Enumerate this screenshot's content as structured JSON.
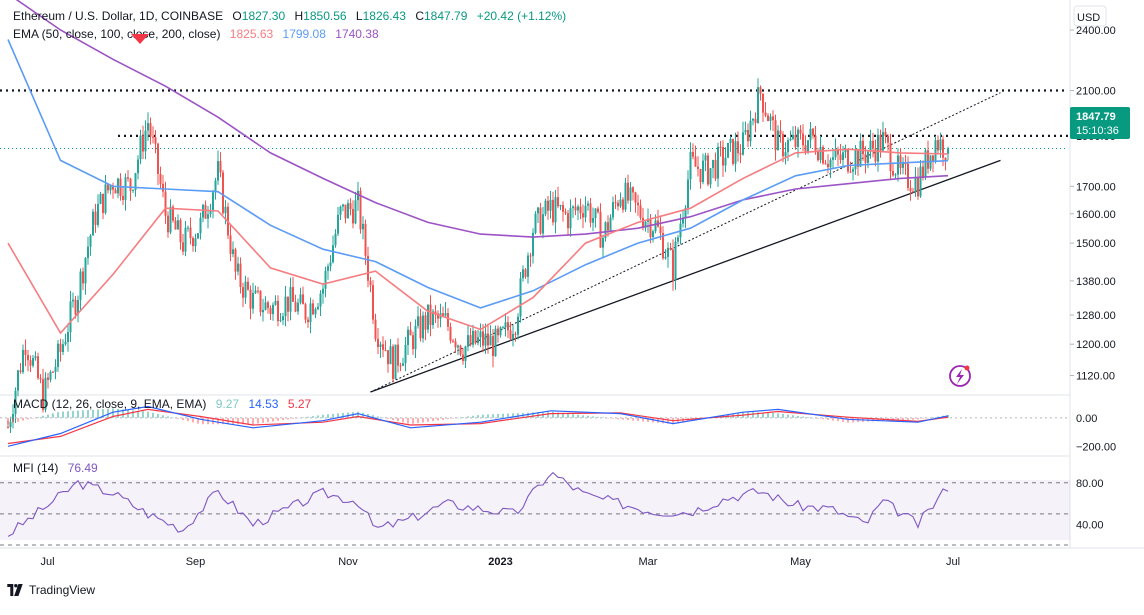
{
  "header": {
    "symbol_line_prefix": "Ethereum / U.S. Dollar, 1D, COINBASE",
    "o_label": "O",
    "o_value": "1827.30",
    "h_label": "H",
    "h_value": "1850.56",
    "l_label": "L",
    "l_value": "1826.43",
    "c_label": "C",
    "c_value": "1847.79",
    "change": "+20.42 (+1.12%)",
    "ema_label": "EMA (50, close, 100, close, 200, close)",
    "ema50_value": "1825.63",
    "ema100_value": "1799.08",
    "ema200_value": "1740.38",
    "currency": "USD"
  },
  "price_tags": {
    "last_price": "1847.79",
    "countdown": "15:10:36"
  },
  "macd_header": {
    "label": "MACD (12, 26, close, 9, EMA, EMA)",
    "histogram_value": "9.27",
    "macd_value": "14.53",
    "signal_value": "5.27"
  },
  "mfi_header": {
    "label": "MFI (14)",
    "value": "76.49"
  },
  "footer": {
    "brand": "TradingView"
  },
  "colors": {
    "up": "#26a69a",
    "down": "#ef5350",
    "ema50": "#f77c80",
    "ema100": "#5b9cf6",
    "ema200": "#9c53c5",
    "macd": "#2962ff",
    "signal": "#f23645",
    "mfi": "#7e57c2",
    "price_tag": "#089981"
  },
  "chart_data": [
    {
      "type": "candlestick",
      "title": "Ethereum / U.S. Dollar, 1D, COINBASE",
      "x_ticks": [
        "Jul",
        "Sep",
        "Nov",
        "2023",
        "Mar",
        "May",
        "Jul"
      ],
      "y_ticks": [
        "1120.00",
        "1200.00",
        "1280.00",
        "1380.00",
        "1500.00",
        "1600.00",
        "1700.00",
        "1900.00",
        "2100.00",
        "2400.00"
      ],
      "y_scale": "log",
      "ylim": [
        1080,
        2400
      ],
      "close_path": [
        [
          "2022-06-18",
          1000
        ],
        [
          "2022-06-25",
          1210
        ],
        [
          "2022-07-02",
          1070
        ],
        [
          "2022-07-09",
          1180
        ],
        [
          "2022-07-16",
          1350
        ],
        [
          "2022-07-23",
          1600
        ],
        [
          "2022-07-30",
          1720
        ],
        [
          "2022-08-06",
          1700
        ],
        [
          "2022-08-13",
          1960
        ],
        [
          "2022-08-20",
          1600
        ],
        [
          "2022-08-27",
          1500
        ],
        [
          "2022-09-03",
          1560
        ],
        [
          "2022-09-10",
          1750
        ],
        [
          "2022-09-17",
          1400
        ],
        [
          "2022-09-24",
          1320
        ],
        [
          "2022-10-01",
          1300
        ],
        [
          "2022-10-08",
          1320
        ],
        [
          "2022-10-15",
          1290
        ],
        [
          "2022-10-22",
          1360
        ],
        [
          "2022-10-29",
          1600
        ],
        [
          "2022-11-05",
          1630
        ],
        [
          "2022-11-12",
          1250
        ],
        [
          "2022-11-19",
          1150
        ],
        [
          "2022-11-26",
          1210
        ],
        [
          "2022-12-03",
          1270
        ],
        [
          "2022-12-10",
          1260
        ],
        [
          "2022-12-17",
          1190
        ],
        [
          "2022-12-24",
          1210
        ],
        [
          "2022-12-31",
          1200
        ],
        [
          "2023-01-07",
          1270
        ],
        [
          "2023-01-14",
          1550
        ],
        [
          "2023-01-21",
          1620
        ],
        [
          "2023-01-28",
          1590
        ],
        [
          "2023-02-04",
          1640
        ],
        [
          "2023-02-11",
          1520
        ],
        [
          "2023-02-18",
          1680
        ],
        [
          "2023-02-25",
          1610
        ],
        [
          "2023-03-04",
          1560
        ],
        [
          "2023-03-11",
          1420
        ],
        [
          "2023-03-18",
          1780
        ],
        [
          "2023-03-25",
          1760
        ],
        [
          "2023-04-01",
          1820
        ],
        [
          "2023-04-08",
          1860
        ],
        [
          "2023-04-15",
          2090
        ],
        [
          "2023-04-22",
          1860
        ],
        [
          "2023-04-29",
          1870
        ],
        [
          "2023-05-06",
          1890
        ],
        [
          "2023-05-13",
          1800
        ],
        [
          "2023-05-20",
          1810
        ],
        [
          "2023-05-27",
          1830
        ],
        [
          "2023-06-03",
          1880
        ],
        [
          "2023-06-10",
          1740
        ],
        [
          "2023-06-17",
          1720
        ],
        [
          "2023-06-24",
          1880
        ],
        [
          "2023-06-29",
          1847.79
        ]
      ],
      "ema50_path": [
        [
          "2022-06-18",
          1500
        ],
        [
          "2022-07-09",
          1230
        ],
        [
          "2022-07-30",
          1400
        ],
        [
          "2022-08-20",
          1620
        ],
        [
          "2022-09-10",
          1610
        ],
        [
          "2022-10-01",
          1420
        ],
        [
          "2022-10-22",
          1370
        ],
        [
          "2022-11-12",
          1410
        ],
        [
          "2022-12-03",
          1290
        ],
        [
          "2022-12-24",
          1240
        ],
        [
          "2023-01-14",
          1330
        ],
        [
          "2023-02-04",
          1500
        ],
        [
          "2023-02-25",
          1570
        ],
        [
          "2023-03-18",
          1620
        ],
        [
          "2023-04-08",
          1730
        ],
        [
          "2023-04-29",
          1830
        ],
        [
          "2023-05-20",
          1845
        ],
        [
          "2023-06-10",
          1830
        ],
        [
          "2023-06-29",
          1825.63
        ]
      ],
      "ema100_path": [
        [
          "2022-06-18",
          2350
        ],
        [
          "2022-07-09",
          1800
        ],
        [
          "2022-07-30",
          1700
        ],
        [
          "2022-08-20",
          1690
        ],
        [
          "2022-09-10",
          1680
        ],
        [
          "2022-10-01",
          1560
        ],
        [
          "2022-10-22",
          1480
        ],
        [
          "2022-11-12",
          1440
        ],
        [
          "2022-12-03",
          1360
        ],
        [
          "2022-12-24",
          1300
        ],
        [
          "2023-01-14",
          1350
        ],
        [
          "2023-02-04",
          1430
        ],
        [
          "2023-02-25",
          1500
        ],
        [
          "2023-03-18",
          1550
        ],
        [
          "2023-04-08",
          1650
        ],
        [
          "2023-04-29",
          1740
        ],
        [
          "2023-05-20",
          1780
        ],
        [
          "2023-06-10",
          1790
        ],
        [
          "2023-06-29",
          1799.08
        ]
      ],
      "ema200_path": [
        [
          "2022-06-18",
          2600
        ],
        [
          "2022-07-09",
          2400
        ],
        [
          "2022-07-30",
          2250
        ],
        [
          "2022-08-20",
          2120
        ],
        [
          "2022-09-10",
          1980
        ],
        [
          "2022-10-01",
          1830
        ],
        [
          "2022-10-22",
          1730
        ],
        [
          "2022-11-12",
          1640
        ],
        [
          "2022-12-03",
          1570
        ],
        [
          "2022-12-24",
          1530
        ],
        [
          "2023-01-14",
          1520
        ],
        [
          "2023-02-04",
          1530
        ],
        [
          "2023-02-25",
          1550
        ],
        [
          "2023-03-18",
          1590
        ],
        [
          "2023-04-08",
          1650
        ],
        [
          "2023-04-29",
          1690
        ],
        [
          "2023-05-20",
          1710
        ],
        [
          "2023-06-10",
          1730
        ],
        [
          "2023-06-29",
          1740.38
        ]
      ],
      "resistance_levels": [
        2100,
        1900
      ],
      "trend_line_solid": [
        [
          "2022-11-10",
          1080
        ],
        [
          "2023-07-20",
          1800
        ]
      ],
      "trend_line_dotted": [
        [
          "2022-11-10",
          1080
        ],
        [
          "2023-07-20",
          2090
        ]
      ]
    },
    {
      "type": "line",
      "title": "MACD (12, 26, close, 9, EMA, EMA)",
      "y_ticks": [
        "0.00",
        "−200.00"
      ],
      "ylim": [
        -240,
        140
      ],
      "macd_path": [
        [
          "2022-06-18",
          -200
        ],
        [
          "2022-07-09",
          -110
        ],
        [
          "2022-07-30",
          40
        ],
        [
          "2022-08-13",
          80
        ],
        [
          "2022-09-03",
          -10
        ],
        [
          "2022-09-24",
          -70
        ],
        [
          "2022-10-22",
          -20
        ],
        [
          "2022-11-05",
          30
        ],
        [
          "2022-11-26",
          -70
        ],
        [
          "2022-12-24",
          -30
        ],
        [
          "2023-01-21",
          50
        ],
        [
          "2023-02-18",
          30
        ],
        [
          "2023-03-11",
          -40
        ],
        [
          "2023-04-08",
          40
        ],
        [
          "2023-04-22",
          60
        ],
        [
          "2023-05-20",
          -10
        ],
        [
          "2023-06-17",
          -30
        ],
        [
          "2023-06-29",
          14.53
        ]
      ],
      "signal_path": [
        [
          "2022-06-18",
          -180
        ],
        [
          "2022-07-09",
          -130
        ],
        [
          "2022-07-30",
          10
        ],
        [
          "2022-08-13",
          60
        ],
        [
          "2022-09-03",
          10
        ],
        [
          "2022-09-24",
          -50
        ],
        [
          "2022-10-22",
          -30
        ],
        [
          "2022-11-05",
          10
        ],
        [
          "2022-11-26",
          -50
        ],
        [
          "2022-12-24",
          -40
        ],
        [
          "2023-01-21",
          30
        ],
        [
          "2023-02-18",
          35
        ],
        [
          "2023-03-11",
          -20
        ],
        [
          "2023-04-08",
          20
        ],
        [
          "2023-04-22",
          45
        ],
        [
          "2023-05-20",
          5
        ],
        [
          "2023-06-17",
          -25
        ],
        [
          "2023-06-29",
          5.27
        ]
      ]
    },
    {
      "type": "line",
      "title": "MFI (14)",
      "y_ticks": [
        "80.00",
        "40.00"
      ],
      "ylim": [
        20,
        100
      ],
      "levels": [
        80,
        50,
        20
      ],
      "mfi_path": [
        [
          "2022-06-18",
          30
        ],
        [
          "2022-07-02",
          55
        ],
        [
          "2022-07-16",
          80
        ],
        [
          "2022-07-30",
          70
        ],
        [
          "2022-08-13",
          50
        ],
        [
          "2022-08-27",
          35
        ],
        [
          "2022-09-10",
          72
        ],
        [
          "2022-09-24",
          40
        ],
        [
          "2022-10-08",
          55
        ],
        [
          "2022-10-22",
          70
        ],
        [
          "2022-11-05",
          62
        ],
        [
          "2022-11-12",
          35
        ],
        [
          "2022-11-26",
          45
        ],
        [
          "2022-12-10",
          60
        ],
        [
          "2022-12-24",
          55
        ],
        [
          "2023-01-07",
          50
        ],
        [
          "2023-01-21",
          90
        ],
        [
          "2023-02-04",
          68
        ],
        [
          "2023-02-18",
          60
        ],
        [
          "2023-03-04",
          52
        ],
        [
          "2023-03-18",
          52
        ],
        [
          "2023-04-01",
          65
        ],
        [
          "2023-04-15",
          72
        ],
        [
          "2023-04-29",
          58
        ],
        [
          "2023-05-13",
          55
        ],
        [
          "2023-05-27",
          40
        ],
        [
          "2023-06-03",
          62
        ],
        [
          "2023-06-17",
          40
        ],
        [
          "2023-06-29",
          76.49
        ]
      ]
    }
  ]
}
